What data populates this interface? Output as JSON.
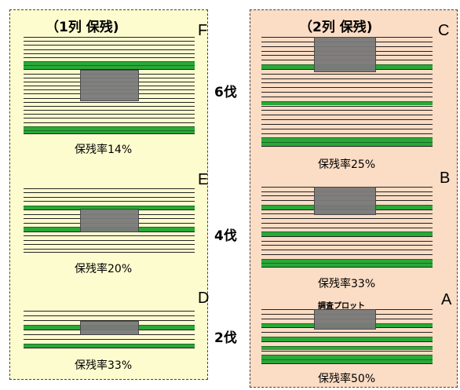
{
  "left_panel": {
    "title": "（1列 保残)",
    "blocks": [
      {
        "letter": "F",
        "rate_label": "保残率14%"
      },
      {
        "letter": "E",
        "rate_label": "保残率20%"
      },
      {
        "letter": "D",
        "rate_label": "保残率33%"
      }
    ]
  },
  "right_panel": {
    "title": "（2列 保残)",
    "blocks": [
      {
        "letter": "C",
        "rate_label": "保残率25%"
      },
      {
        "letter": "B",
        "rate_label": "保残率33%"
      },
      {
        "letter": "A",
        "rate_label": "保残率50%",
        "plot_label": "調査プロット"
      }
    ]
  },
  "thinning_counts": [
    "6伐",
    "4伐",
    "2伐"
  ],
  "colors": {
    "left_background": "#fdfccf",
    "right_background": "#fbdcc4",
    "retained_row": "#2aa838",
    "survey_plot": "#7a7a7a"
  }
}
